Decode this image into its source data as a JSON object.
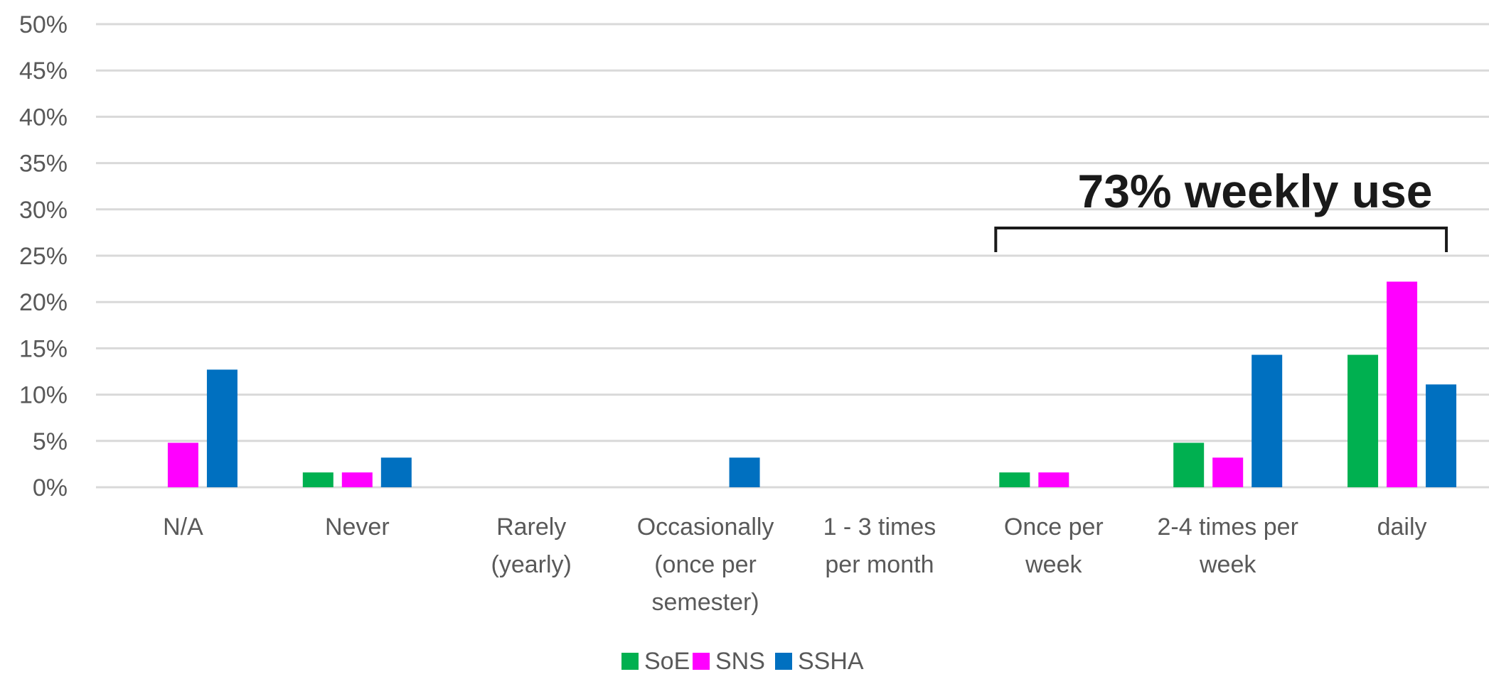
{
  "chart_data": {
    "type": "bar",
    "categories": [
      [
        "N/A"
      ],
      [
        "Never"
      ],
      [
        "Rarely",
        "(yearly)"
      ],
      [
        "Occasionally",
        "(once per",
        "semester)"
      ],
      [
        "1 - 3 times",
        "per month"
      ],
      [
        "Once per",
        "week"
      ],
      [
        "2-4 times per",
        "week"
      ],
      [
        "daily"
      ]
    ],
    "series": [
      {
        "name": "SoE",
        "color": "#00b050",
        "values": [
          0,
          1.6,
          0,
          0,
          0,
          1.6,
          4.8,
          14.3
        ]
      },
      {
        "name": "SNS",
        "color": "#ff00ff",
        "values": [
          4.8,
          1.6,
          0,
          0,
          0,
          1.6,
          3.2,
          22.2
        ]
      },
      {
        "name": "SSHA",
        "color": "#0070c0",
        "values": [
          12.7,
          3.2,
          0,
          3.2,
          0,
          0,
          14.3,
          11.1
        ]
      }
    ],
    "ylim": [
      0,
      50
    ],
    "yticks": [
      "0%",
      "5%",
      "10%",
      "15%",
      "20%",
      "25%",
      "30%",
      "35%",
      "40%",
      "45%",
      "50%"
    ],
    "grid": true,
    "legend": "bottom-center",
    "annotation": {
      "text": "73% weekly use",
      "bracket_from": 5,
      "bracket_to": 7
    }
  }
}
